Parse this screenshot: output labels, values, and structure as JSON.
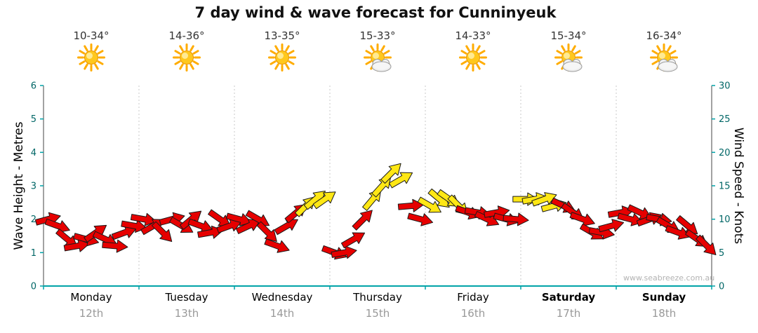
{
  "title": "7 day wind & wave forecast for Cunninyeuk",
  "watermark": "www.seabreeze.com.au",
  "axes": {
    "left_label": "Wave Height - Metres",
    "right_label": "Wind Speed - Knots",
    "left_ticks": [
      0,
      1,
      2,
      3,
      4,
      5,
      6
    ],
    "right_ticks": [
      0,
      5,
      10,
      15,
      20,
      25,
      30
    ],
    "left_range": [
      0,
      6
    ],
    "right_range": [
      0,
      30
    ],
    "x_range_days": [
      0,
      7
    ]
  },
  "days": [
    {
      "name": "Monday",
      "date": "12th",
      "temp": "10-34°",
      "icon": "sun",
      "bold": false
    },
    {
      "name": "Tuesday",
      "date": "13th",
      "temp": "14-36°",
      "icon": "sun",
      "bold": false
    },
    {
      "name": "Wednesday",
      "date": "14th",
      "temp": "13-35°",
      "icon": "sun",
      "bold": false
    },
    {
      "name": "Thursday",
      "date": "15th",
      "temp": "15-33°",
      "icon": "sun-cloud",
      "bold": false
    },
    {
      "name": "Friday",
      "date": "16th",
      "temp": "14-33°",
      "icon": "sun",
      "bold": false
    },
    {
      "name": "Saturday",
      "date": "17th",
      "temp": "15-34°",
      "icon": "sun-cloud",
      "bold": true
    },
    {
      "name": "Sunday",
      "date": "18th",
      "temp": "16-34°",
      "icon": "sun-cloud",
      "bold": true
    }
  ],
  "colors": {
    "arrow_red": "#e60000",
    "arrow_yellow": "#ffe714",
    "arrow_outline": "#1a1a1a",
    "axis_teal": "#00a3a8",
    "axis_line": "#444444",
    "tick_label": "#006666",
    "grid_gray": "#c9c9c9",
    "date_gray": "#999999"
  },
  "chart_data": {
    "type": "wind_arrow_series",
    "title": "7 day wind & wave forecast for Cunninyeuk",
    "ylabel_left": "Wave Height - Metres",
    "ylabel_right": "Wind Speed - Knots",
    "ylim_left": [
      0,
      6
    ],
    "ylim_right": [
      0,
      30
    ],
    "grid": "vertical-dotted-day-boundaries",
    "legend": "none",
    "categories": [
      "Monday 12th",
      "Tuesday 13th",
      "Wednesday 14th",
      "Thursday 15th",
      "Friday 16th",
      "Saturday 17th",
      "Sunday 18th"
    ],
    "arrows": {
      "columns": [
        "day_fraction",
        "knots",
        "direction_deg",
        "color"
      ],
      "color_codes": {
        "r": "red (lighter winds)",
        "y": "yellow (stronger winds)"
      },
      "rows": [
        [
          0.05,
          10,
          -15,
          "r"
        ],
        [
          0.15,
          9,
          20,
          "r"
        ],
        [
          0.25,
          7,
          40,
          "r"
        ],
        [
          0.35,
          6,
          -10,
          "r"
        ],
        [
          0.45,
          7,
          15,
          "r"
        ],
        [
          0.55,
          8,
          -35,
          "r"
        ],
        [
          0.65,
          7,
          25,
          "r"
        ],
        [
          0.75,
          6,
          5,
          "r"
        ],
        [
          0.85,
          8,
          -20,
          "r"
        ],
        [
          0.95,
          9,
          10,
          "r"
        ],
        [
          1.05,
          10,
          10,
          "r"
        ],
        [
          1.15,
          9,
          -30,
          "r"
        ],
        [
          1.25,
          8,
          45,
          "r"
        ],
        [
          1.35,
          10,
          -15,
          "r"
        ],
        [
          1.45,
          9,
          30,
          "r"
        ],
        [
          1.55,
          10,
          -40,
          "r"
        ],
        [
          1.65,
          9,
          20,
          "r"
        ],
        [
          1.75,
          8,
          -10,
          "r"
        ],
        [
          1.85,
          10,
          35,
          "r"
        ],
        [
          1.95,
          9,
          -20,
          "r"
        ],
        [
          2.05,
          10,
          15,
          "r"
        ],
        [
          2.15,
          9,
          -25,
          "r"
        ],
        [
          2.25,
          10,
          30,
          "r"
        ],
        [
          2.35,
          8,
          45,
          "r"
        ],
        [
          2.45,
          6,
          20,
          "r"
        ],
        [
          2.55,
          9,
          -30,
          "r"
        ],
        [
          2.65,
          11,
          -40,
          "r"
        ],
        [
          2.75,
          12,
          -45,
          "y"
        ],
        [
          2.85,
          13,
          -40,
          "y"
        ],
        [
          2.95,
          13,
          -35,
          "y"
        ],
        [
          3.05,
          5,
          20,
          "r"
        ],
        [
          3.15,
          5,
          -10,
          "r"
        ],
        [
          3.25,
          7,
          -30,
          "r"
        ],
        [
          3.35,
          10,
          -45,
          "r"
        ],
        [
          3.45,
          13,
          -50,
          "y"
        ],
        [
          3.55,
          15,
          -48,
          "y"
        ],
        [
          3.65,
          17,
          -45,
          "y"
        ],
        [
          3.75,
          16,
          -30,
          "y"
        ],
        [
          3.85,
          12,
          -5,
          "r"
        ],
        [
          3.95,
          10,
          15,
          "r"
        ],
        [
          4.05,
          12,
          30,
          "y"
        ],
        [
          4.15,
          13,
          40,
          "y"
        ],
        [
          4.25,
          13,
          35,
          "y"
        ],
        [
          4.35,
          12,
          45,
          "y"
        ],
        [
          4.45,
          11,
          20,
          "r"
        ],
        [
          4.55,
          11,
          10,
          "r"
        ],
        [
          4.65,
          10,
          25,
          "r"
        ],
        [
          4.75,
          11,
          -10,
          "r"
        ],
        [
          4.85,
          10,
          15,
          "r"
        ],
        [
          4.95,
          10,
          5,
          "r"
        ],
        [
          5.05,
          13,
          0,
          "y"
        ],
        [
          5.15,
          13,
          -10,
          "y"
        ],
        [
          5.25,
          13,
          -20,
          "y"
        ],
        [
          5.35,
          12,
          -15,
          "y"
        ],
        [
          5.45,
          12,
          25,
          "r"
        ],
        [
          5.55,
          11,
          35,
          "r"
        ],
        [
          5.65,
          10,
          20,
          "r"
        ],
        [
          5.75,
          8,
          30,
          "r"
        ],
        [
          5.85,
          8,
          10,
          "r"
        ],
        [
          5.95,
          9,
          -15,
          "r"
        ],
        [
          6.05,
          11,
          -10,
          "r"
        ],
        [
          6.15,
          10,
          15,
          "r"
        ],
        [
          6.25,
          11,
          25,
          "r"
        ],
        [
          6.35,
          10,
          -20,
          "r"
        ],
        [
          6.45,
          10,
          10,
          "r"
        ],
        [
          6.55,
          9,
          30,
          "r"
        ],
        [
          6.65,
          8,
          20,
          "r"
        ],
        [
          6.75,
          9,
          40,
          "r"
        ],
        [
          6.85,
          7,
          35,
          "r"
        ],
        [
          6.95,
          6,
          45,
          "r"
        ]
      ]
    }
  }
}
